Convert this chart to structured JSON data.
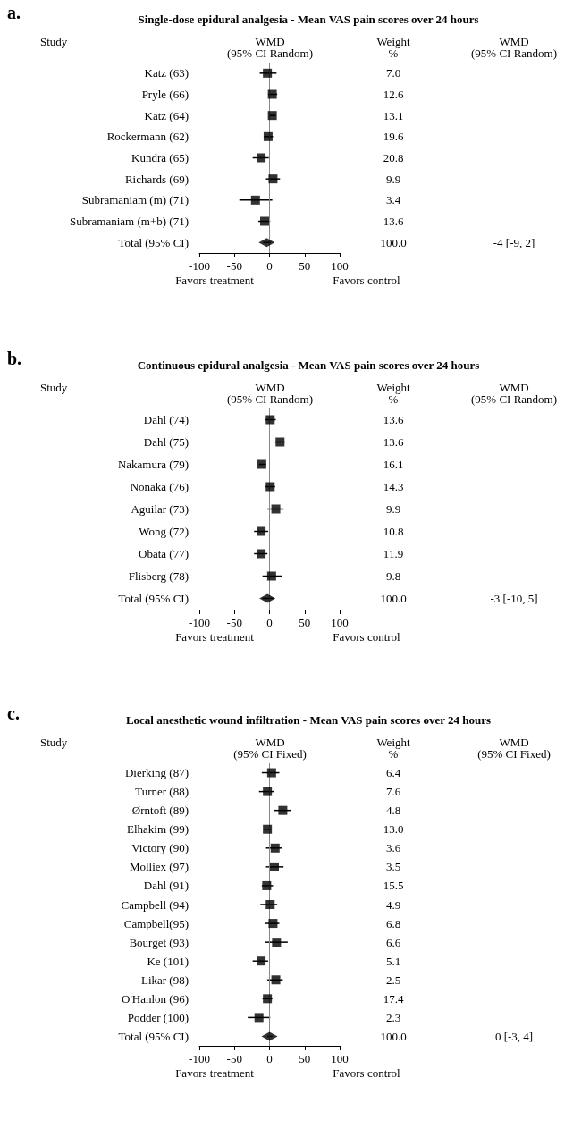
{
  "chart_data": [
    {
      "type": "scatter",
      "orientation": "horizontal",
      "title": "Single-dose epidural analgesia - Mean VAS pain scores over 24 hours",
      "categories": [
        "Katz (63)",
        "Pryle (66)",
        "Katz (64)",
        "Rockermann (62)",
        "Kundra (65)",
        "Richards (69)",
        "Subramaniam (m) (71)",
        "Subramaniam (m+b) (71)",
        "Total (95% CI)"
      ],
      "xlim": [
        -100,
        100
      ],
      "xticks": [
        -100,
        -50,
        0,
        50,
        100
      ],
      "ref_lines": [
        {
          "axis": "x",
          "value": 0,
          "color": "#888888"
        }
      ],
      "series": [
        {
          "color": "#000000",
          "marker": "square",
          "values": [
            -3,
            4,
            4,
            -2,
            -12,
            5,
            -20,
            -7,
            null
          ],
          "errors": [
            [
              -14,
              10
            ],
            [
              -2,
              11
            ],
            [
              0,
              9
            ],
            [
              -8,
              5
            ],
            [
              -24,
              -1
            ],
            [
              -5,
              15
            ],
            [
              -43,
              4
            ],
            [
              -16,
              1
            ],
            null
          ]
        },
        {
          "color": "#000000",
          "marker": "diamond",
          "values": [
            null,
            null,
            null,
            null,
            null,
            null,
            null,
            null,
            -4
          ],
          "errors": [
            null,
            null,
            null,
            null,
            null,
            null,
            null,
            null,
            [
              -9,
              2
            ]
          ]
        }
      ],
      "annotations": [
        "a.",
        "Study",
        "WMD\n(95% CI Random)",
        "Weight\n%",
        "WMD\n(95% CI Random)",
        "Favors treatment",
        "Favors control",
        "7.0",
        "12.6",
        "13.1",
        "19.6",
        "20.8",
        "9.9",
        "3.4",
        "13.6",
        "100.0",
        "-4 [-9, 2]"
      ]
    },
    {
      "type": "scatter",
      "orientation": "horizontal",
      "title": "Continuous epidural analgesia - Mean VAS pain scores over 24 hours",
      "categories": [
        "Dahl (74)",
        "Dahl (75)",
        "Nakamura (79)",
        "Nonaka (76)",
        "Aguilar (73)",
        "Wong (72)",
        "Obata (77)",
        "Flisberg (78)",
        "Total (95% CI)"
      ],
      "xlim": [
        -100,
        100
      ],
      "xticks": [
        -100,
        -50,
        0,
        50,
        100
      ],
      "ref_lines": [
        {
          "axis": "x",
          "value": 0,
          "color": "#888888"
        }
      ],
      "series": [
        {
          "color": "#000000",
          "marker": "square",
          "values": [
            1,
            15,
            -11,
            1,
            9,
            -12,
            -12,
            3,
            null
          ],
          "errors": [
            [
              -6,
              9
            ],
            [
              8,
              22
            ],
            [
              -15,
              -5
            ],
            [
              -6,
              8
            ],
            [
              -3,
              20
            ],
            [
              -22,
              -2
            ],
            [
              -22,
              -3
            ],
            [
              -10,
              18
            ],
            null
          ]
        },
        {
          "color": "#000000",
          "marker": "diamond",
          "values": [
            null,
            null,
            null,
            null,
            null,
            null,
            null,
            null,
            -3
          ],
          "errors": [
            null,
            null,
            null,
            null,
            null,
            null,
            null,
            null,
            [
              -10,
              5
            ]
          ]
        }
      ],
      "annotations": [
        "b.",
        "Study",
        "WMD\n(95% CI Random)",
        "Weight\n%",
        "WMD\n(95% CI Random)",
        "Favors treatment",
        "Favors control",
        "13.6",
        "13.6",
        "16.1",
        "14.3",
        "9.9",
        "10.8",
        "11.9",
        "9.8",
        "100.0",
        "-3 [-10, 5]"
      ]
    },
    {
      "type": "scatter",
      "orientation": "horizontal",
      "title": "Local anesthetic wound infiltration - Mean VAS pain scores over 24 hours",
      "categories": [
        "Dierking (87)",
        "Turner (88)",
        "Ørntoft (89)",
        "Elhakim (99)",
        "Victory (90)",
        "Molliex (97)",
        "Dahl (91)",
        "Campbell (94)",
        "Campbell(95)",
        "Bourget (93)",
        "Ke (101)",
        "Likar (98)",
        "O'Hanlon (96)",
        "Podder (100)",
        "Total (95% CI)"
      ],
      "xlim": [
        -100,
        100
      ],
      "xticks": [
        -100,
        -50,
        0,
        50,
        100
      ],
      "ref_lines": [
        {
          "axis": "x",
          "value": 0,
          "color": "#888888"
        }
      ],
      "series": [
        {
          "color": "#000000",
          "marker": "square",
          "values": [
            3,
            -3,
            19,
            -3,
            8,
            7,
            -4,
            1,
            5,
            10,
            -12,
            9,
            -3,
            -15,
            null
          ],
          "errors": [
            [
              -11,
              14
            ],
            [
              -15,
              7
            ],
            [
              7,
              31
            ],
            [
              -8,
              2
            ],
            [
              -5,
              18
            ],
            [
              -5,
              20
            ],
            [
              -11,
              5
            ],
            [
              -13,
              11
            ],
            [
              -7,
              14
            ],
            [
              -7,
              26
            ],
            [
              -24,
              -2
            ],
            [
              -3,
              19
            ],
            [
              -10,
              4
            ],
            [
              -31,
              1
            ],
            null
          ]
        },
        {
          "color": "#000000",
          "marker": "diamond",
          "values": [
            null,
            null,
            null,
            null,
            null,
            null,
            null,
            null,
            null,
            null,
            null,
            null,
            null,
            null,
            0
          ],
          "errors": [
            null,
            null,
            null,
            null,
            null,
            null,
            null,
            null,
            null,
            null,
            null,
            null,
            null,
            null,
            [
              -3,
              4
            ]
          ]
        }
      ],
      "annotations": [
        "c.",
        "Study",
        "WMD\n(95% CI Fixed)",
        "Weight\n%",
        "WMD\n(95% CI Fixed)",
        "Favors treatment",
        "Favors control",
        "6.4",
        "7.6",
        "4.8",
        "13.0",
        "3.6",
        "3.5",
        "15.5",
        "4.9",
        "6.8",
        "6.6",
        "5.1",
        "2.5",
        "17.4",
        "2.3",
        "100.0",
        "0 [-3, 4]"
      ]
    }
  ]
}
